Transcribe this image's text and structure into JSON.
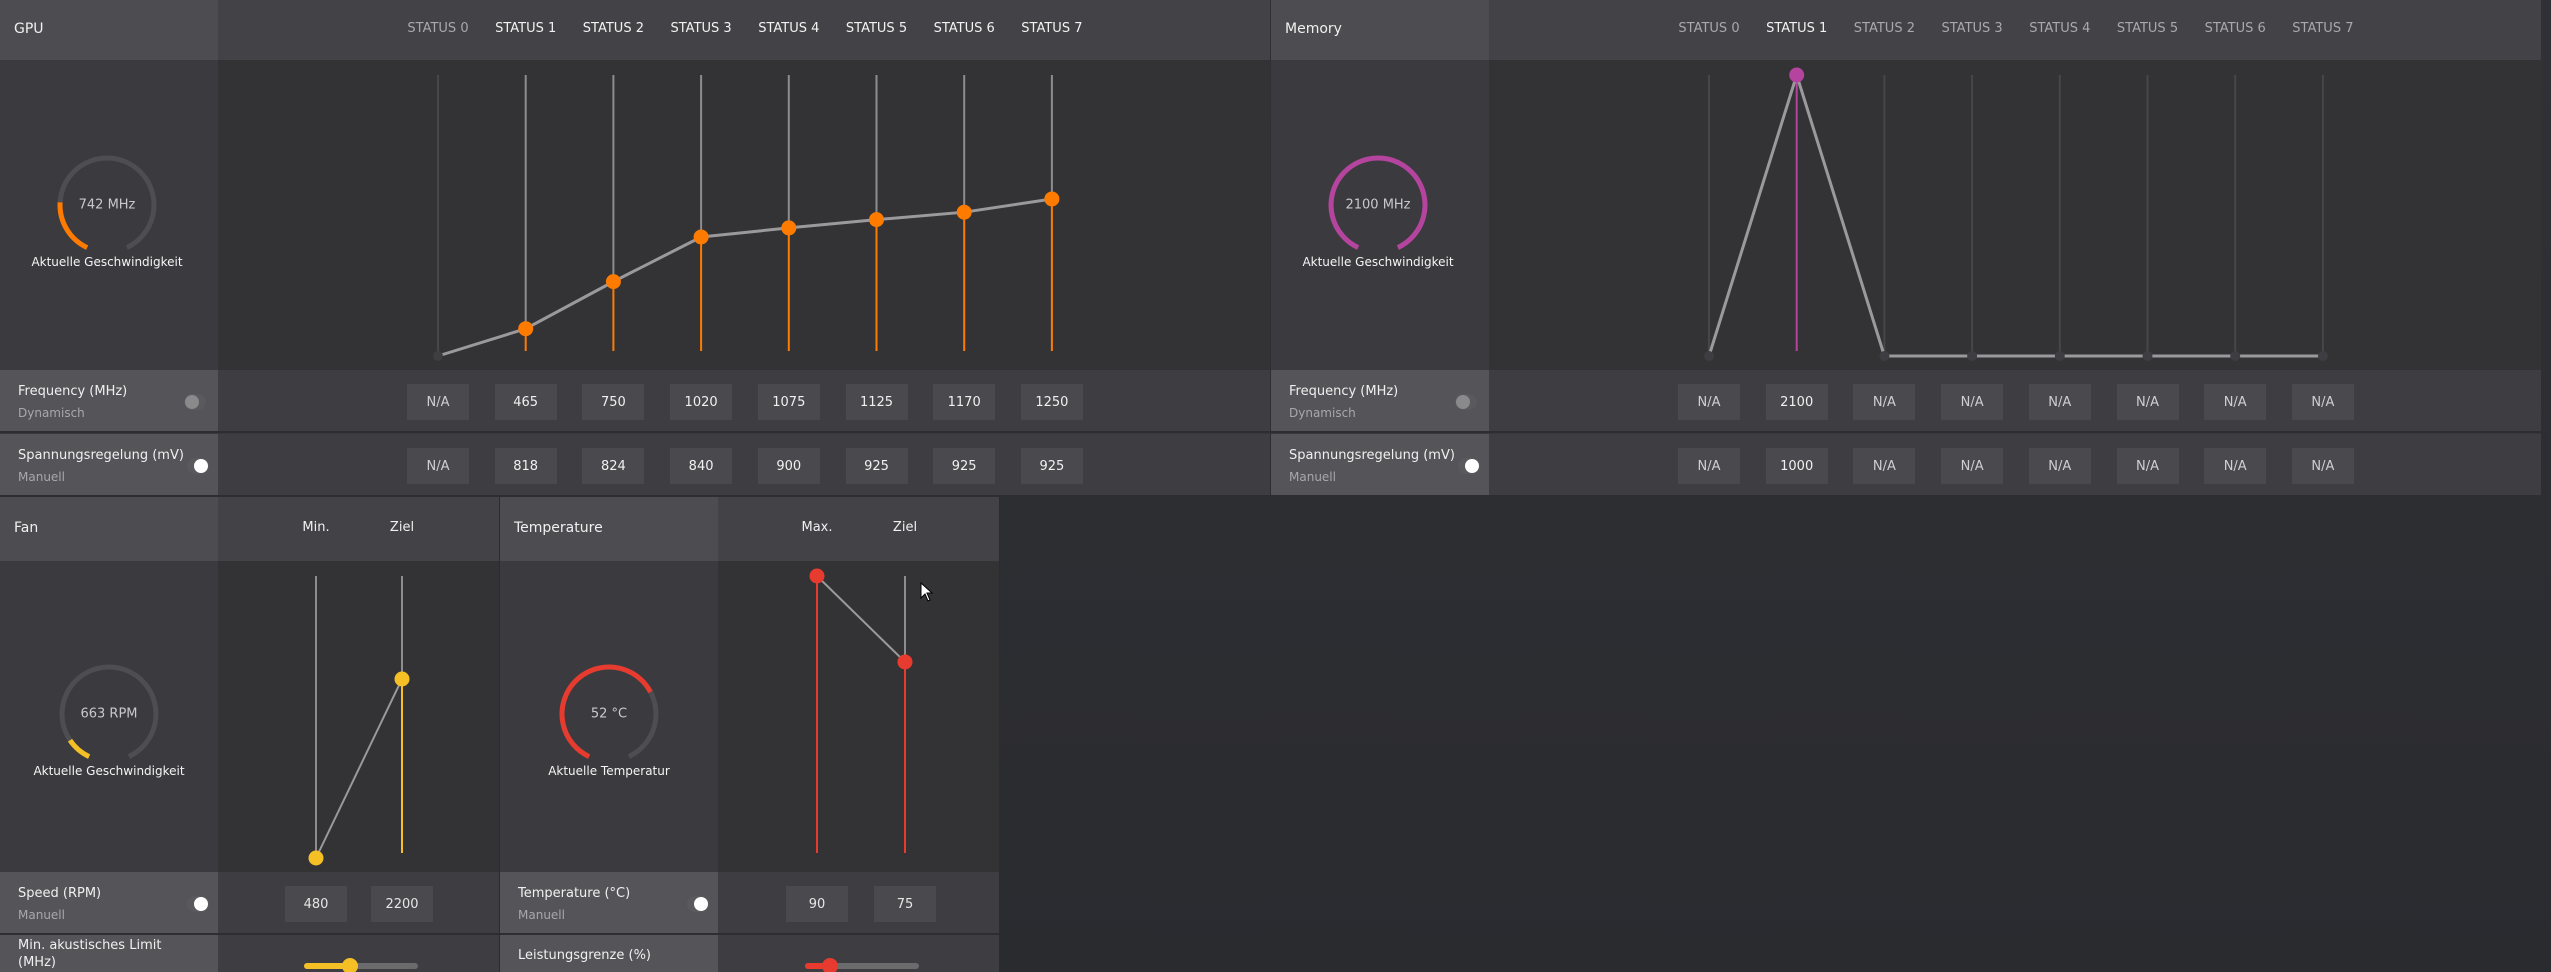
{
  "gpu": {
    "title": "GPU",
    "accent": "#ff7b00",
    "states": [
      "STATUS 0",
      "STATUS 1",
      "STATUS 2",
      "STATUS 3",
      "STATUS 4",
      "STATUS 5",
      "STATUS 6",
      "STATUS 7"
    ],
    "state_enabled": [
      false,
      true,
      true,
      true,
      true,
      true,
      true,
      true
    ],
    "gauge": {
      "value": "742 MHz",
      "label": "Aktuelle Geschwindigkeit",
      "fill": 0.22
    },
    "freq_row": {
      "label": "Frequency (MHz)",
      "mode": "Dynamisch",
      "toggle_on": false,
      "values": [
        "N/A",
        "465",
        "750",
        "1020",
        "1075",
        "1125",
        "1170",
        "1250"
      ]
    },
    "volt_row": {
      "label": "Spannungsregelung (mV)",
      "mode": "Manuell",
      "toggle_on": true,
      "values": [
        "N/A",
        "818",
        "824",
        "840",
        "900",
        "925",
        "925",
        "925"
      ]
    }
  },
  "memory": {
    "title": "Memory",
    "accent": "#b5449f",
    "states": [
      "STATUS 0",
      "STATUS 1",
      "STATUS 2",
      "STATUS 3",
      "STATUS 4",
      "STATUS 5",
      "STATUS 6",
      "STATUS 7"
    ],
    "state_enabled": [
      false,
      true,
      false,
      false,
      false,
      false,
      false,
      false
    ],
    "gauge": {
      "value": "2100 MHz",
      "label": "Aktuelle Geschwindigkeit",
      "fill": 1.0
    },
    "freq_row": {
      "label": "Frequency (MHz)",
      "mode": "Dynamisch",
      "toggle_on": false,
      "values": [
        "N/A",
        "2100",
        "N/A",
        "N/A",
        "N/A",
        "N/A",
        "N/A",
        "N/A"
      ]
    },
    "volt_row": {
      "label": "Spannungsregelung (mV)",
      "mode": "Manuell",
      "toggle_on": true,
      "values": [
        "N/A",
        "1000",
        "N/A",
        "N/A",
        "N/A",
        "N/A",
        "N/A",
        "N/A"
      ]
    }
  },
  "fan": {
    "title": "Fan",
    "accent": "#f5c026",
    "columns": [
      "Min.",
      "Ziel"
    ],
    "gauge": {
      "value": "663 RPM",
      "label": "Aktuelle Geschwindigkeit",
      "fill": 0.1
    },
    "value_row": {
      "label": "Speed (RPM)",
      "mode": "Manuell",
      "toggle_on": true,
      "values": [
        "480",
        "2200"
      ]
    },
    "slider_row": {
      "label": "Min. akustisches Limit (MHz)",
      "slider": 0.4
    }
  },
  "temperature": {
    "title": "Temperature",
    "accent": "#e63b2e",
    "columns": [
      "Max.",
      "Ziel"
    ],
    "gauge": {
      "value": "52 °C",
      "label": "Aktuelle Temperatur",
      "fill": 0.7
    },
    "value_row": {
      "label": "Temperature (°C)",
      "mode": "Manuell",
      "toggle_on": true,
      "values": [
        "90",
        "75"
      ]
    },
    "slider_row": {
      "label": "Leistungsgrenze (%)",
      "slider": 0.22
    }
  }
}
